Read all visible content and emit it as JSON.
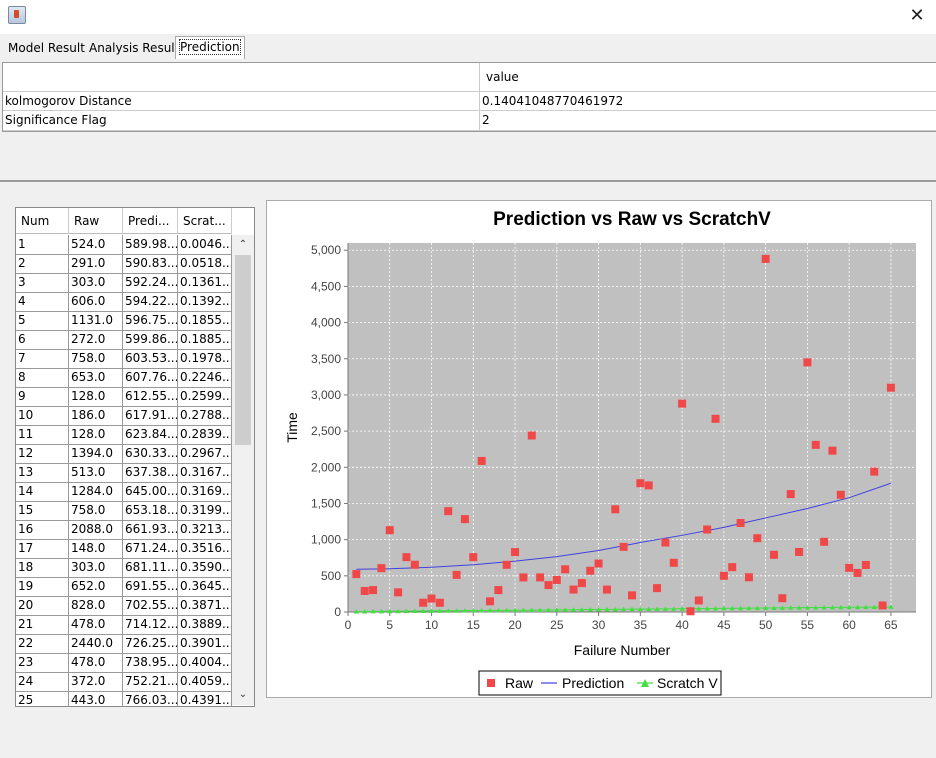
{
  "window": {
    "close_label": "✕"
  },
  "tabs": [
    {
      "label": "Model Result",
      "active": false
    },
    {
      "label": "Analysis Result",
      "active": false
    },
    {
      "label": "Prediction",
      "active": true
    }
  ],
  "result_table": {
    "header": [
      "",
      "value"
    ],
    "rows": [
      {
        "name": "kolmogorov Distance",
        "value": "0.14041048770461972"
      },
      {
        "name": "Significance Flag",
        "value": "2"
      }
    ]
  },
  "data_table": {
    "columns": [
      "Num",
      "Raw",
      "Predi...",
      "Scrat..."
    ],
    "rows": [
      [
        "1",
        "524.0",
        "589.98...",
        "0.0046..."
      ],
      [
        "2",
        "291.0",
        "590.83...",
        "0.0518..."
      ],
      [
        "3",
        "303.0",
        "592.24...",
        "0.1361..."
      ],
      [
        "4",
        "606.0",
        "594.22...",
        "0.1392..."
      ],
      [
        "5",
        "1131.0",
        "596.75...",
        "0.1855..."
      ],
      [
        "6",
        "272.0",
        "599.86...",
        "0.1885..."
      ],
      [
        "7",
        "758.0",
        "603.53...",
        "0.1978..."
      ],
      [
        "8",
        "653.0",
        "607.76...",
        "0.2246..."
      ],
      [
        "9",
        "128.0",
        "612.55...",
        "0.2599..."
      ],
      [
        "10",
        "186.0",
        "617.91...",
        "0.2788..."
      ],
      [
        "11",
        "128.0",
        "623.84...",
        "0.2839..."
      ],
      [
        "12",
        "1394.0",
        "630.33...",
        "0.2967..."
      ],
      [
        "13",
        "513.0",
        "637.38...",
        "0.3167..."
      ],
      [
        "14",
        "1284.0",
        "645.00...",
        "0.3169..."
      ],
      [
        "15",
        "758.0",
        "653.18...",
        "0.3199..."
      ],
      [
        "16",
        "2088.0",
        "661.93...",
        "0.3213..."
      ],
      [
        "17",
        "148.0",
        "671.24...",
        "0.3516..."
      ],
      [
        "18",
        "303.0",
        "681.11...",
        "0.3590..."
      ],
      [
        "19",
        "652.0",
        "691.55...",
        "0.3645..."
      ],
      [
        "20",
        "828.0",
        "702.55...",
        "0.3871..."
      ],
      [
        "21",
        "478.0",
        "714.12...",
        "0.3889..."
      ],
      [
        "22",
        "2440.0",
        "726.25...",
        "0.3901..."
      ],
      [
        "23",
        "478.0",
        "738.95...",
        "0.4004..."
      ],
      [
        "24",
        "372.0",
        "752.21...",
        "0.4059..."
      ],
      [
        "25",
        "443.0",
        "766.03...",
        "0.4391..."
      ]
    ]
  },
  "colors": {
    "raw": "#f04848",
    "prediction": "#4040e0",
    "scratch": "#40e040",
    "plot_bg": "#c0c0c0"
  },
  "chart_data": {
    "type": "scatter",
    "title": "Prediction vs Raw vs ScratchV",
    "xlabel": "Failure Number",
    "ylabel": "Time",
    "xlim": [
      0,
      68
    ],
    "ylim": [
      0,
      5100
    ],
    "xticks": [
      0,
      5,
      10,
      15,
      20,
      25,
      30,
      35,
      40,
      45,
      50,
      55,
      60,
      65
    ],
    "yticks": [
      0,
      500,
      1000,
      1500,
      2000,
      2500,
      3000,
      3500,
      4000,
      4500,
      5000
    ],
    "ytick_labels": [
      "0",
      "500",
      "1,000",
      "1,500",
      "2,000",
      "2,500",
      "3,000",
      "3,500",
      "4,000",
      "4,500",
      "5,000"
    ],
    "grid": true,
    "legend_position": "bottom",
    "series": [
      {
        "name": "Raw",
        "kind": "scatter",
        "x": [
          1,
          2,
          3,
          4,
          5,
          6,
          7,
          8,
          9,
          10,
          11,
          12,
          13,
          14,
          15,
          16,
          17,
          18,
          19,
          20,
          21,
          22,
          23,
          24,
          25,
          26,
          27,
          28,
          29,
          30,
          31,
          32,
          33,
          34,
          35,
          36,
          37,
          38,
          39,
          40,
          41,
          42,
          43,
          44,
          45,
          46,
          47,
          48,
          49,
          50,
          51,
          52,
          53,
          54,
          55,
          56,
          57,
          58,
          59,
          60,
          61,
          62,
          63,
          64,
          65
        ],
        "y": [
          524,
          291,
          303,
          606,
          1131,
          272,
          758,
          653,
          128,
          186,
          128,
          1394,
          513,
          1284,
          758,
          2088,
          148,
          303,
          652,
          828,
          478,
          2440,
          478,
          372,
          443,
          590,
          310,
          400,
          570,
          670,
          310,
          1420,
          900,
          230,
          1780,
          1750,
          330,
          960,
          680,
          2880,
          10,
          160,
          1140,
          2670,
          500,
          620,
          1230,
          480,
          1020,
          4880,
          790,
          190,
          1630,
          830,
          3450,
          2310,
          970,
          2230,
          1620,
          610,
          540,
          650,
          1940,
          90,
          3100
        ]
      },
      {
        "name": "Prediction",
        "kind": "line",
        "x": [
          1,
          5,
          10,
          15,
          20,
          25,
          30,
          35,
          40,
          45,
          50,
          55,
          60,
          65
        ],
        "y": [
          590,
          597,
          618,
          653,
          703,
          766,
          850,
          960,
          1060,
          1170,
          1300,
          1430,
          1580,
          1780
        ]
      },
      {
        "name": "Scratch V",
        "kind": "line-markers",
        "x": [
          1,
          5,
          10,
          15,
          20,
          25,
          30,
          35,
          40,
          45,
          50,
          55,
          60,
          65
        ],
        "y": [
          5,
          10,
          15,
          20,
          25,
          30,
          35,
          40,
          45,
          50,
          55,
          60,
          65,
          70
        ]
      }
    ]
  }
}
